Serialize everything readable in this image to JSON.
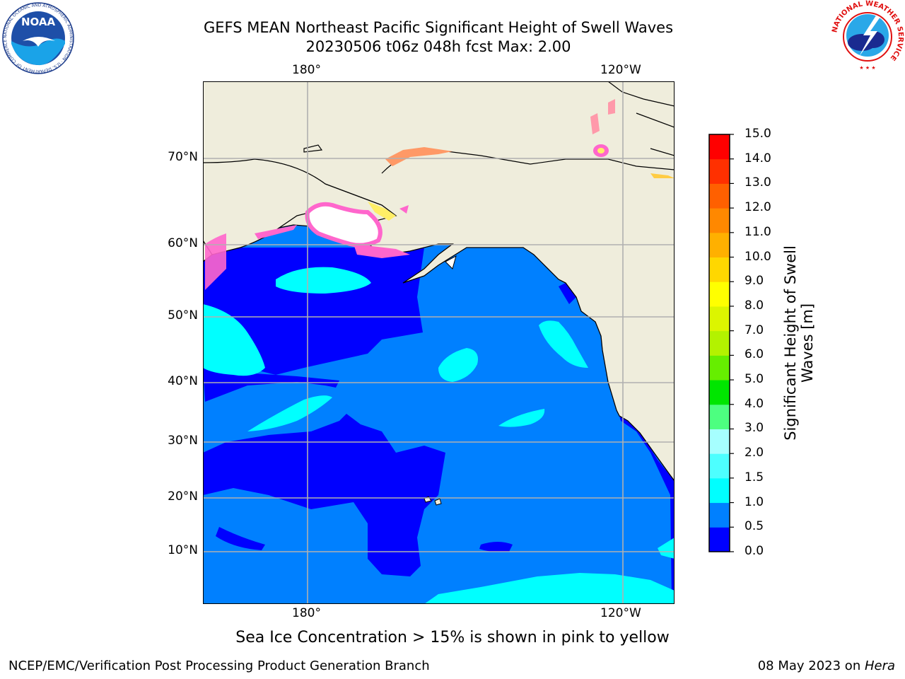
{
  "title": {
    "line1": "GEFS MEAN Northeast Pacific Significant Height of Swell Waves",
    "line2": "20230506 t06z 048h fcst   Max: 2.00"
  },
  "logos": {
    "noaa_text": "NOAA",
    "noaa_ring_text": "NATIONAL OCEANIC AND ATMOSPHERIC ADMINISTRATION · U.S. DEPARTMENT OF COMMERCE",
    "nws_ring_text": "NATIONAL WEATHER SERVICE"
  },
  "map": {
    "lon_top": [
      "180°",
      "120°W"
    ],
    "lon_bottom": [
      "180°",
      "120°W"
    ],
    "lat_labels": [
      "70°N",
      "60°N",
      "50°N",
      "40°N",
      "30°N",
      "20°N",
      "10°N"
    ],
    "colors": {
      "land": "#efeddc",
      "ocean_mid": "#0080ff",
      "ocean_low": "#0000ff",
      "ocean_high": "#00ffff",
      "ice": "#ff66cc",
      "grid": "#b0b0b0"
    }
  },
  "colorbar": {
    "title_line1": "Significant Height of Swell",
    "title_line2": "Waves [m]",
    "ticks": [
      "0.0",
      "0.5",
      "1.0",
      "1.5",
      "2.0",
      "3.0",
      "4.0",
      "5.0",
      "6.0",
      "7.0",
      "8.0",
      "9.0",
      "10.0",
      "11.0",
      "12.0",
      "13.0",
      "14.0",
      "15.0"
    ],
    "colors": [
      "#0000ff",
      "#0080ff",
      "#00ffff",
      "#4dffff",
      "#a6ffff",
      "#4dff80",
      "#00e600",
      "#66ee00",
      "#b3f200",
      "#dcf500",
      "#ffff00",
      "#ffd700",
      "#ffb000",
      "#ff8800",
      "#ff6000",
      "#ff3000",
      "#ff0000"
    ]
  },
  "footer": {
    "note": "Sea Ice Concentration > 15% is shown in pink to yellow",
    "left": "NCEP/EMC/Verification Post Processing Product Generation Branch",
    "right_prefix": "08 May 2023 on ",
    "right_host": "Hera"
  }
}
